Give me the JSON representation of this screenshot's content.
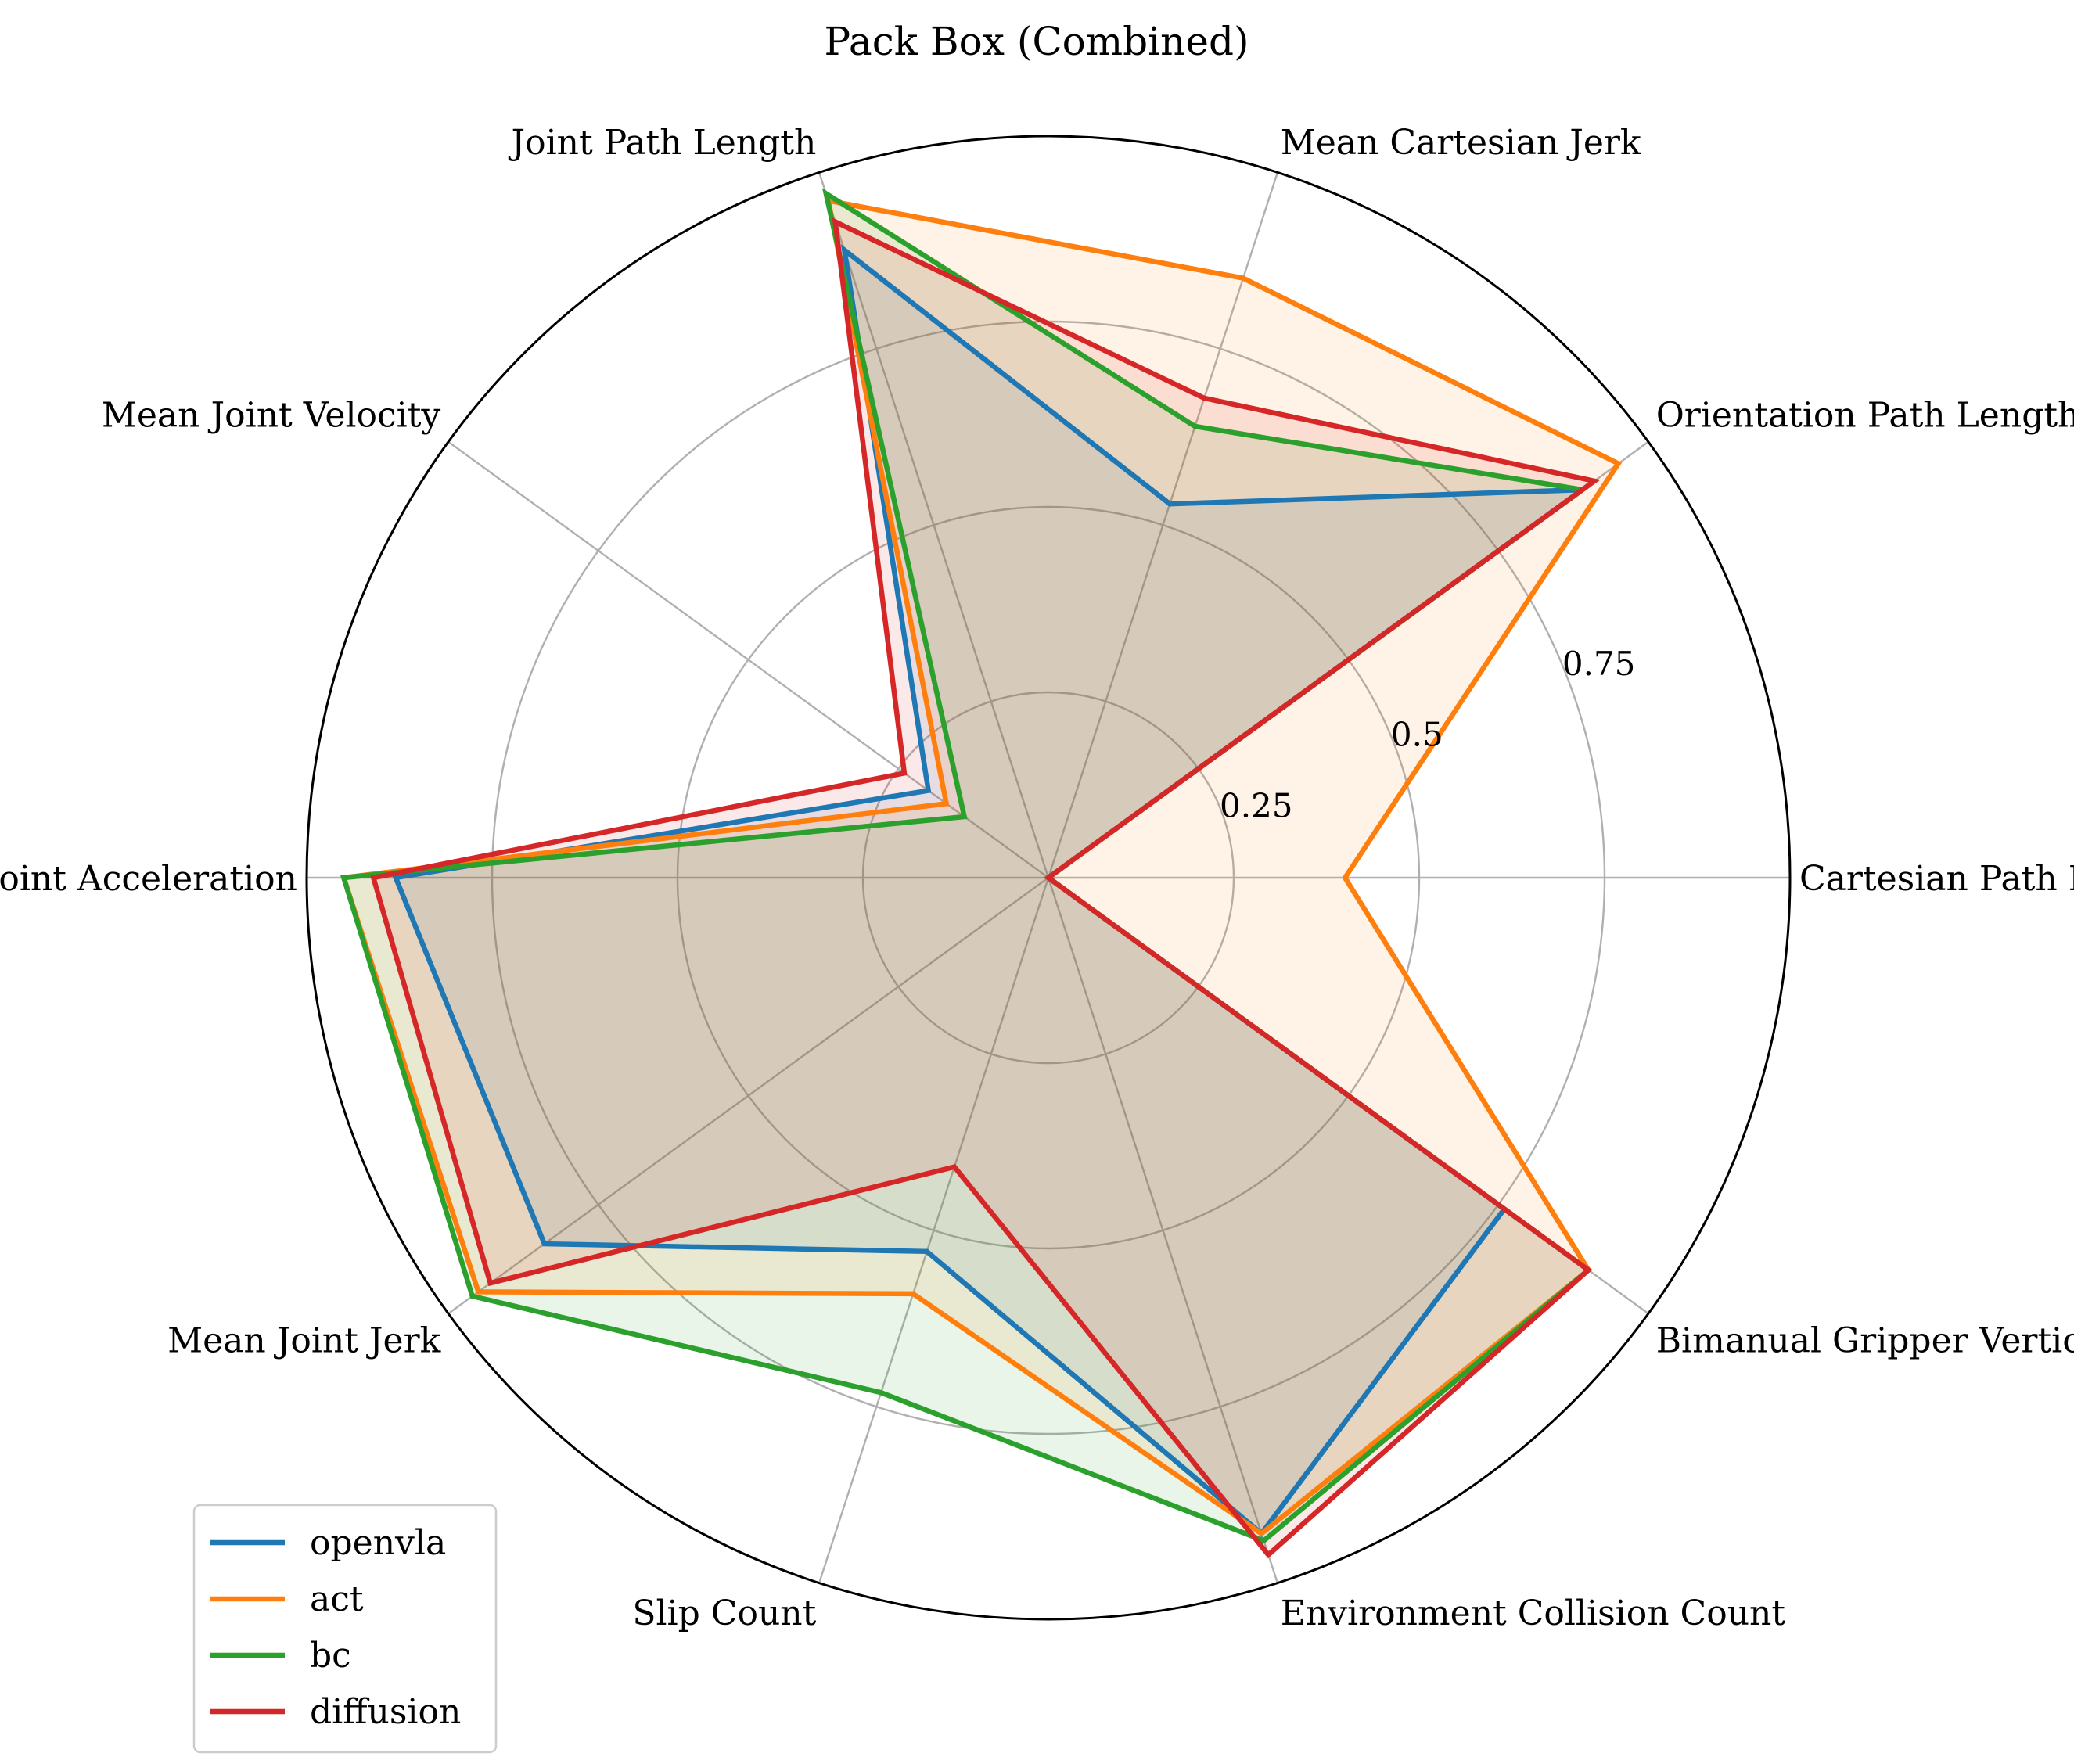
{
  "chart_data": {
    "type": "radar",
    "title": "Pack Box (Combined)",
    "axes": [
      "Cartesian Path Length",
      "Orientation Path Length",
      "Mean Cartesian Jerk",
      "Joint Path Length",
      "Mean Joint Velocity",
      "Mean Joint Acceleration",
      "Mean Joint Jerk",
      "Slip Count",
      "Environment Collision Count",
      "Bimanual Gripper Vertical Difference"
    ],
    "r_ticks": [
      "0.25",
      "0.5",
      "0.75"
    ],
    "r_tick_values": [
      0.25,
      0.5,
      0.75
    ],
    "r_range": [
      0,
      1
    ],
    "grid": true,
    "legend_position": "lower-left",
    "series": [
      {
        "name": "openvla",
        "color": "#1f77b4",
        "values": [
          0.0,
          0.89,
          0.53,
          0.89,
          0.2,
          0.88,
          0.84,
          0.53,
          0.93,
          0.76
        ]
      },
      {
        "name": "act",
        "color": "#ff7f0e",
        "values": [
          0.4,
          0.95,
          0.85,
          0.96,
          0.17,
          0.95,
          0.95,
          0.59,
          0.93,
          0.9
        ]
      },
      {
        "name": "bc",
        "color": "#2ca02c",
        "values": [
          0.0,
          0.89,
          0.64,
          0.97,
          0.14,
          0.95,
          0.96,
          0.73,
          0.94,
          0.9
        ]
      },
      {
        "name": "diffusion",
        "color": "#d62728",
        "values": [
          0.0,
          0.91,
          0.68,
          0.93,
          0.24,
          0.91,
          0.93,
          0.41,
          0.96,
          0.9
        ]
      }
    ]
  }
}
